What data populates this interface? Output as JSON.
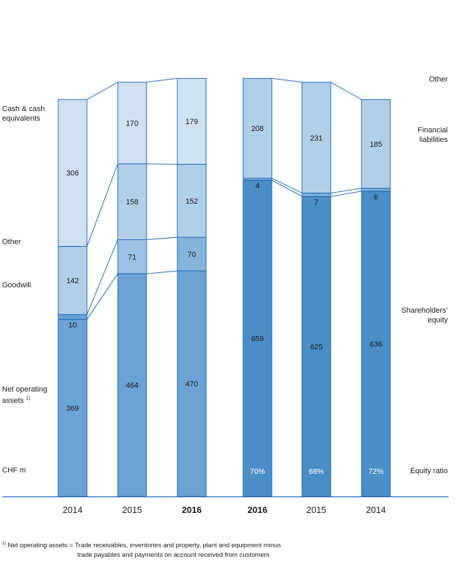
{
  "unit_label": "CHF m",
  "equity_ratio_label": "Equity ratio",
  "chart_data": {
    "type": "bar",
    "stacked": true,
    "ylabel": "",
    "assets": {
      "categories": [
        "2014",
        "2015",
        "2016"
      ],
      "bold": [
        false,
        false,
        true
      ],
      "series": [
        {
          "name": "Net operating assets",
          "values": [
            369,
            464,
            470
          ],
          "color": "#6aa3d4"
        },
        {
          "name": "Goodwill",
          "values": [
            10,
            71,
            70
          ],
          "color": "#84b4dc",
          "colors": [
            "#6aa3d4",
            "#9cc2e4",
            "#84b4dc"
          ]
        },
        {
          "name": "Other",
          "values": [
            142,
            158,
            152
          ],
          "color": "#b2cfe8"
        },
        {
          "name": "Cash & cash equivalents",
          "values": [
            306,
            170,
            179
          ],
          "color": "#cfe0f1"
        }
      ]
    },
    "liabilities": {
      "categories": [
        "2016",
        "2015",
        "2014"
      ],
      "bold": [
        true,
        false,
        false
      ],
      "series": [
        {
          "name": "Shareholders’ equity",
          "values": [
            659,
            625,
            636
          ],
          "color": "#4b8ec6"
        },
        {
          "name": "Financial liabilities",
          "values": [
            4,
            7,
            6
          ],
          "color": "#7eafdb"
        },
        {
          "name": "Other",
          "values": [
            208,
            231,
            185
          ],
          "color": "#b2cfe8"
        }
      ],
      "equity_ratio": [
        "70%",
        "68%",
        "72%"
      ]
    }
  },
  "labels_left": {
    "cash": "Cash & cash\nequivalents",
    "other": "Other",
    "goodwill": "Goodwill",
    "noa": "Net operating\nassets",
    "noa_sup": "1)"
  },
  "labels_right": {
    "other": "Other",
    "fin": "Financial\nliabilities",
    "equity": "Shareholders’\nequity"
  },
  "footnote": {
    "sup": "1)",
    "line1": "Net operating assets = Trade receivables, inventories and property, plant and equipment minus",
    "line2": "trade payables and payments on account received from customers"
  }
}
